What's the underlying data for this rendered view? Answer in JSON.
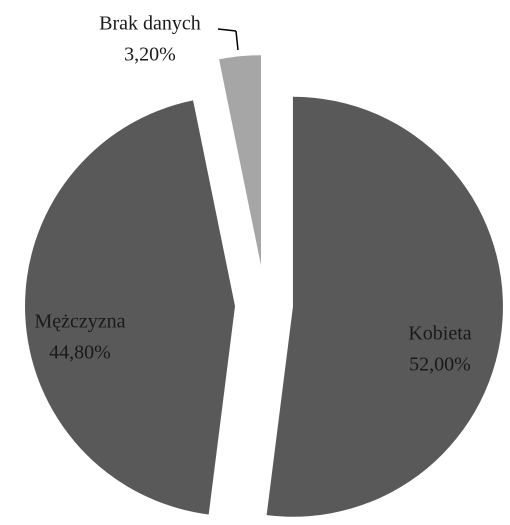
{
  "chart_data": {
    "type": "pie",
    "categories": [
      "Kobieta",
      "Mężczyzna",
      "Brak danych"
    ],
    "values": [
      52,
      44.8,
      3.2
    ],
    "value_labels": [
      "52,00%",
      "44,80%",
      "3,20%"
    ],
    "colors": [
      "#595959",
      "#595959",
      "#a6a6a6"
    ]
  }
}
